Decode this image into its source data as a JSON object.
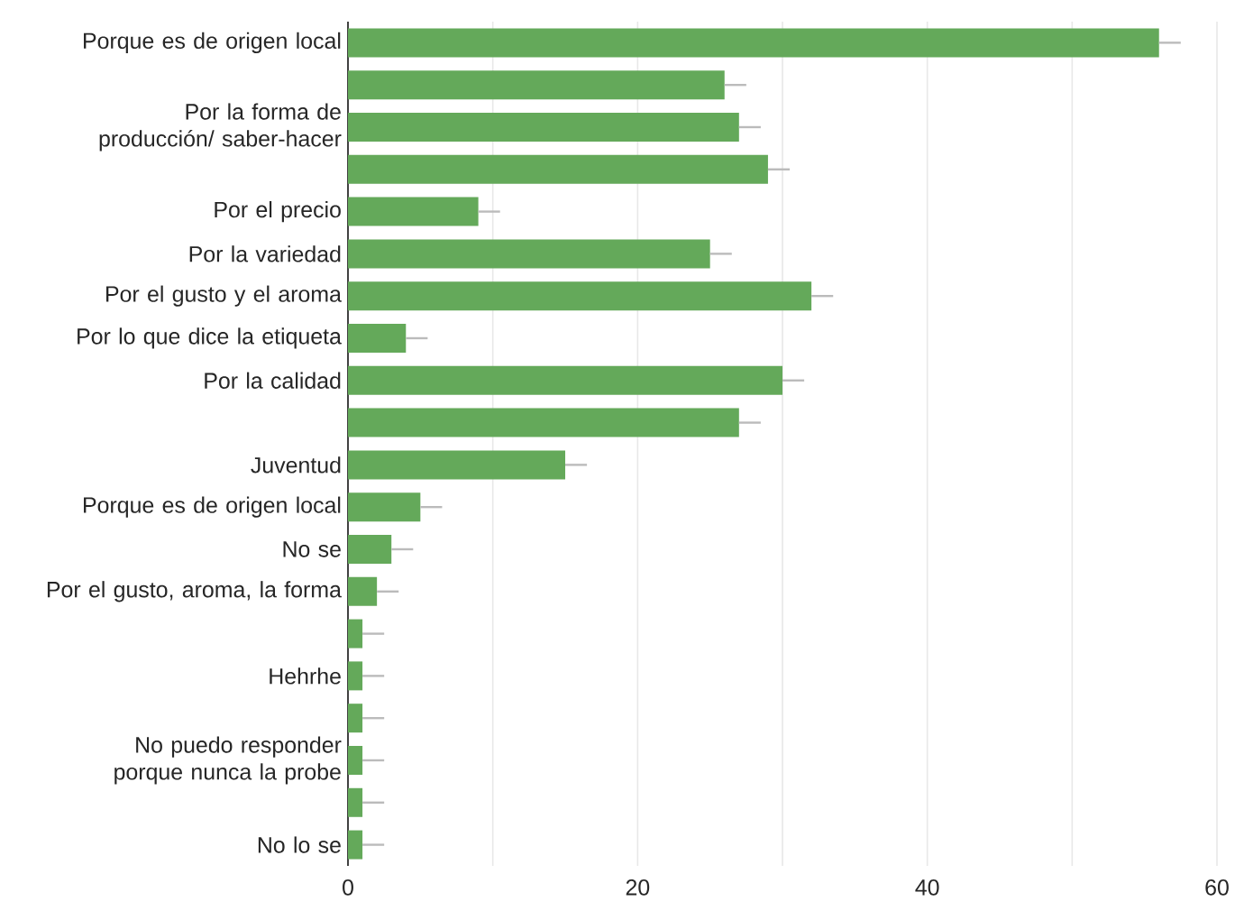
{
  "chart_data": {
    "type": "bar",
    "orientation": "horizontal",
    "categories": [
      "Porque es de origen local",
      null,
      "Por la forma de producción/ saber-hacer",
      null,
      "Por el precio",
      "Por la variedad",
      "Por el gusto y el aroma",
      "Por lo que dice la etiqueta",
      "Por la calidad",
      null,
      "Juventud",
      "Porque es de origen local",
      "No se",
      "Por el gusto, aroma, la forma",
      null,
      "Hehrhe",
      null,
      "No puedo responder porque nunca la probe",
      null,
      "No lo se"
    ],
    "values": [
      56,
      26,
      27,
      29,
      9,
      25,
      32,
      4,
      30,
      27,
      15,
      5,
      3,
      2,
      1,
      1,
      1,
      1,
      1,
      1
    ],
    "errors": [
      [
        56,
        57.5
      ],
      [
        26,
        27.5
      ],
      [
        27,
        28.5
      ],
      [
        29,
        30.5
      ],
      [
        9,
        10.5
      ],
      [
        25,
        26.5
      ],
      [
        32,
        33.5
      ],
      [
        4,
        5.5
      ],
      [
        30,
        31.5
      ],
      [
        27,
        28.5
      ],
      [
        15,
        16.5
      ],
      [
        5,
        6.5
      ],
      [
        3,
        4.5
      ],
      [
        2,
        3.5
      ],
      [
        1,
        2.5
      ],
      [
        1,
        2.5
      ],
      [
        1,
        2.5
      ],
      [
        1,
        2.5
      ],
      [
        1,
        2.5
      ],
      [
        1,
        2.5
      ]
    ],
    "color": "#64a95a",
    "xlim": [
      0,
      60
    ],
    "xticks": [
      0,
      {
        "value": 10,
        "label": null
      },
      20,
      {
        "value": 30,
        "label": null
      },
      40,
      {
        "value": 50,
        "label": null
      },
      60
    ],
    "grid": "x"
  }
}
